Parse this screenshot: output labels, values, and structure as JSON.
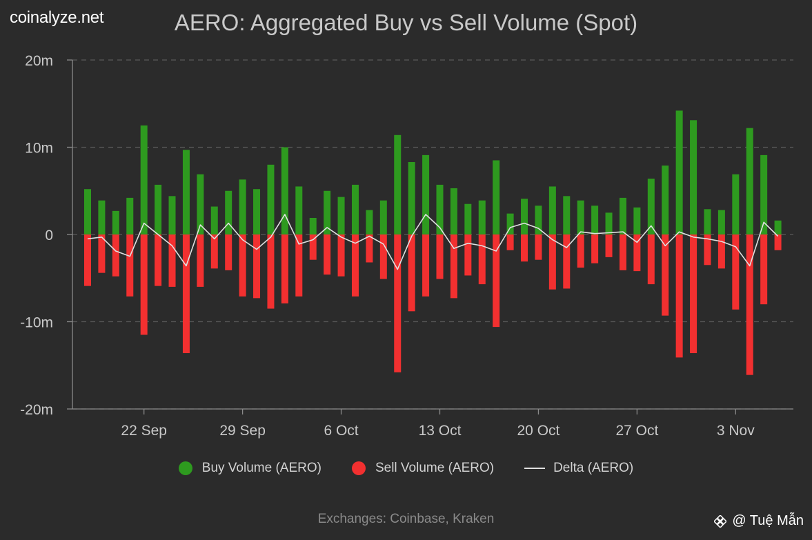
{
  "brand": "coinalyze.net",
  "watermark": "@ Tuệ Mẫn",
  "footer": "Exchanges: Coinbase, Kraken",
  "colors": {
    "buy": "#2e9a1f",
    "sell": "#f23030",
    "delta": "#e0e0e0",
    "grid": "#5a5a5a",
    "background": "#2b2b2b"
  },
  "chart_data": {
    "type": "bar",
    "title": "AERO: Aggregated Buy vs Sell Volume (Spot)",
    "xlabel": "",
    "ylabel": "",
    "ylim": [
      -20000000,
      20000000
    ],
    "yticks": [
      {
        "value": 20000000,
        "label": "20m"
      },
      {
        "value": 10000000,
        "label": "10m"
      },
      {
        "value": 0,
        "label": "0"
      },
      {
        "value": -10000000,
        "label": "-10m"
      },
      {
        "value": -20000000,
        "label": "-20m"
      }
    ],
    "xticks": [
      {
        "index": 4,
        "label": "22 Sep"
      },
      {
        "index": 11,
        "label": "29 Sep"
      },
      {
        "index": 18,
        "label": "6 Oct"
      },
      {
        "index": 25,
        "label": "13 Oct"
      },
      {
        "index": 32,
        "label": "20 Oct"
      },
      {
        "index": 39,
        "label": "27 Oct"
      },
      {
        "index": 46,
        "label": "3 Nov"
      }
    ],
    "categories": [
      "18 Sep",
      "19 Sep",
      "20 Sep",
      "21 Sep",
      "22 Sep",
      "23 Sep",
      "24 Sep",
      "25 Sep",
      "26 Sep",
      "27 Sep",
      "28 Sep",
      "29 Sep",
      "30 Sep",
      "1 Oct",
      "2 Oct",
      "3 Oct",
      "4 Oct",
      "5 Oct",
      "6 Oct",
      "7 Oct",
      "8 Oct",
      "9 Oct",
      "10 Oct",
      "11 Oct",
      "12 Oct",
      "13 Oct",
      "14 Oct",
      "15 Oct",
      "16 Oct",
      "17 Oct",
      "18 Oct",
      "19 Oct",
      "20 Oct",
      "21 Oct",
      "22 Oct",
      "23 Oct",
      "24 Oct",
      "25 Oct",
      "26 Oct",
      "27 Oct",
      "28 Oct",
      "29 Oct",
      "30 Oct",
      "31 Oct",
      "1 Nov",
      "2 Nov",
      "3 Nov",
      "4 Nov",
      "5 Nov",
      "6 Nov"
    ],
    "series": [
      {
        "name": "Buy Volume (AERO)",
        "values": [
          5.2,
          3.9,
          2.7,
          4.2,
          12.5,
          5.7,
          4.4,
          9.7,
          6.9,
          3.2,
          5.0,
          6.3,
          5.2,
          8.0,
          10.0,
          5.5,
          1.9,
          5.0,
          4.3,
          5.7,
          2.8,
          3.9,
          11.4,
          8.3,
          9.1,
          5.7,
          5.3,
          3.5,
          3.9,
          8.5,
          2.4,
          4.1,
          3.3,
          5.5,
          4.4,
          3.9,
          3.3,
          2.5,
          4.2,
          3.1,
          6.4,
          7.9,
          14.2,
          13.1,
          2.9,
          2.8,
          6.9,
          12.2,
          9.1,
          1.6
        ]
      },
      {
        "name": "Sell Volume (AERO)",
        "values": [
          -5.9,
          -4.4,
          -4.8,
          -7.1,
          -11.5,
          -5.9,
          -6.0,
          -13.6,
          -6.0,
          -3.9,
          -4.1,
          -7.1,
          -7.3,
          -8.5,
          -7.9,
          -7.1,
          -2.9,
          -4.6,
          -4.8,
          -7.1,
          -3.2,
          -5.1,
          -15.8,
          -8.8,
          -7.1,
          -5.1,
          -7.3,
          -4.7,
          -5.7,
          -10.6,
          -1.8,
          -3.1,
          -2.9,
          -6.3,
          -6.2,
          -3.8,
          -3.3,
          -2.6,
          -4.1,
          -4.2,
          -5.7,
          -9.3,
          -14.1,
          -13.6,
          -3.5,
          -3.9,
          -8.6,
          -16.1,
          -8.0,
          -1.8
        ]
      },
      {
        "name": "Delta (AERO)",
        "values": [
          -0.5,
          -0.3,
          -1.9,
          -2.5,
          1.3,
          0.0,
          -1.3,
          -3.6,
          1.1,
          -0.5,
          1.3,
          -0.6,
          -1.7,
          -0.3,
          2.3,
          -1.1,
          -0.6,
          0.8,
          -0.3,
          -1.0,
          -0.2,
          -1.1,
          -4.0,
          -0.2,
          2.3,
          0.8,
          -1.6,
          -1.0,
          -1.3,
          -1.9,
          0.8,
          1.3,
          0.7,
          -0.6,
          -1.5,
          0.3,
          0.1,
          0.2,
          0.3,
          -0.9,
          1.0,
          -1.3,
          0.3,
          -0.3,
          -0.5,
          -0.8,
          -1.4,
          -3.6,
          1.4,
          -0.2
        ]
      }
    ],
    "units": "millions"
  }
}
